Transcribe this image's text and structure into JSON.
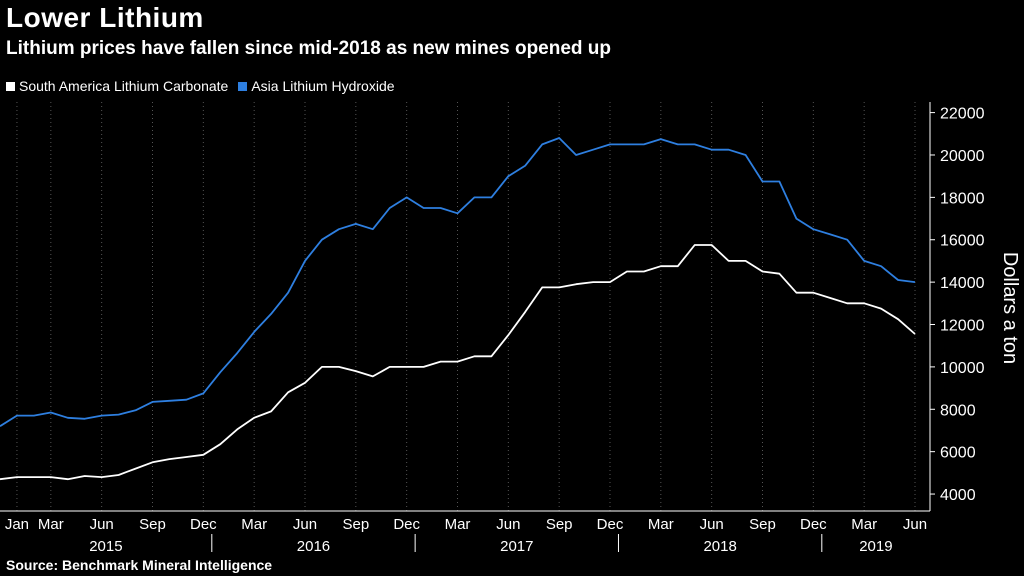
{
  "title": "Lower Lithium",
  "subtitle": "Lithium prices have fallen since mid-2018 as new mines opened up",
  "source": "Source: Benchmark Mineral Intelligence",
  "colors": {
    "background": "#000000",
    "series1": "#ffffff",
    "series2": "#2e7fe0",
    "grid": "#555555"
  },
  "chart_data": {
    "type": "line",
    "ylabel": "Dollars a ton",
    "ylim": [
      3200,
      22500
    ],
    "yticks": [
      4000,
      6000,
      8000,
      10000,
      12000,
      14000,
      16000,
      18000,
      20000,
      22000
    ],
    "grid": "vertical dotted at month ticks",
    "legend_position": "top-left",
    "x_month_labels": [
      "Jan",
      "Mar",
      "Jun",
      "Sep",
      "Dec",
      "Mar",
      "Jun",
      "Sep",
      "Dec",
      "Mar",
      "Jun",
      "Sep",
      "Dec",
      "Mar",
      "Jun",
      "Sep",
      "Dec",
      "Mar",
      "Jun"
    ],
    "x_month_dates": [
      "2015-01",
      "2015-03",
      "2015-06",
      "2015-09",
      "2015-12",
      "2016-03",
      "2016-06",
      "2016-09",
      "2016-12",
      "2017-03",
      "2017-06",
      "2017-09",
      "2017-12",
      "2018-03",
      "2018-06",
      "2018-09",
      "2018-12",
      "2019-03",
      "2019-06"
    ],
    "x_year_labels": [
      "2015",
      "2016",
      "2017",
      "2018",
      "2019"
    ],
    "x": [
      "2014-12",
      "2015-01",
      "2015-02",
      "2015-03",
      "2015-04",
      "2015-05",
      "2015-06",
      "2015-07",
      "2015-08",
      "2015-09",
      "2015-10",
      "2015-11",
      "2015-12",
      "2016-01",
      "2016-02",
      "2016-03",
      "2016-04",
      "2016-05",
      "2016-06",
      "2016-07",
      "2016-08",
      "2016-09",
      "2016-10",
      "2016-11",
      "2016-12",
      "2017-01",
      "2017-02",
      "2017-03",
      "2017-04",
      "2017-05",
      "2017-06",
      "2017-07",
      "2017-08",
      "2017-09",
      "2017-10",
      "2017-11",
      "2017-12",
      "2018-01",
      "2018-02",
      "2018-03",
      "2018-04",
      "2018-05",
      "2018-06",
      "2018-07",
      "2018-08",
      "2018-09",
      "2018-10",
      "2018-11",
      "2018-12",
      "2019-01",
      "2019-02",
      "2019-03",
      "2019-04",
      "2019-05",
      "2019-06"
    ],
    "series": [
      {
        "name": "South America Lithium Carbonate",
        "values": [
          4700,
          4800,
          4800,
          4800,
          4700,
          4850,
          4800,
          4900,
          5200,
          5500,
          5650,
          5750,
          5850,
          6350,
          7050,
          7600,
          7900,
          8800,
          9250,
          10000,
          10000,
          9800,
          9550,
          10000,
          10000,
          10000,
          10250,
          10250,
          10500,
          10500,
          11500,
          12600,
          13750,
          13750,
          13900,
          14000,
          14000,
          14500,
          14500,
          14750,
          14750,
          15750,
          15750,
          15000,
          15000,
          14500,
          14400,
          13500,
          13500,
          13250,
          13000,
          13000,
          12750,
          12250,
          11550
        ]
      },
      {
        "name": "Asia Lithium Hydroxide",
        "values": [
          7200,
          7700,
          7700,
          7850,
          7600,
          7550,
          7700,
          7750,
          7950,
          8350,
          8400,
          8450,
          8750,
          9750,
          10650,
          11650,
          12500,
          13500,
          15000,
          16000,
          16500,
          16750,
          16500,
          17500,
          18000,
          17500,
          17500,
          17250,
          18000,
          18000,
          19000,
          19500,
          20500,
          20800,
          20000,
          20250,
          20500,
          20500,
          20500,
          20750,
          20500,
          20500,
          20250,
          20250,
          20000,
          18750,
          18750,
          17000,
          16500,
          16250,
          16000,
          15000,
          14750,
          14100,
          14000
        ]
      }
    ]
  }
}
